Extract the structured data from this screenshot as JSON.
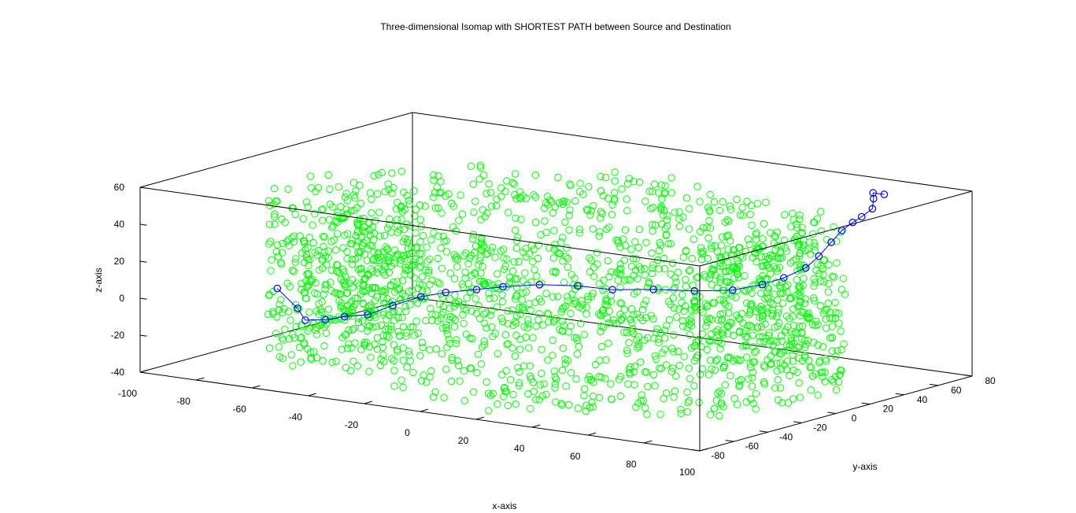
{
  "chart_data": {
    "type": "scatter",
    "projection": "3d",
    "title": "Three-dimensional Isomap with SHORTEST PATH between Source and Destination",
    "xlabel": "x-axis",
    "ylabel": "y-axis",
    "zlabel": "z-axis",
    "xlim": [
      -100,
      100
    ],
    "ylim": [
      -80,
      80
    ],
    "zlim": [
      -40,
      60
    ],
    "xticks": [
      "-100",
      "-80",
      "-60",
      "-40",
      "-20",
      "0",
      "20",
      "40",
      "60",
      "80",
      "100"
    ],
    "yticks": [
      "-80",
      "-60",
      "-40",
      "-20",
      "0",
      "20",
      "40",
      "60",
      "80"
    ],
    "zticks": [
      "-40",
      "-20",
      "0",
      "20",
      "40",
      "60"
    ],
    "grid": false,
    "box": true,
    "series": [
      {
        "marker": "circle",
        "color": "#00ff00",
        "point_count": 2000,
        "distribution": "hollow torus of points: radius about 40 to 95 in x-y around the origin, z between about -40 and 50"
      },
      {
        "marker": "circle",
        "line": true,
        "color": "#0000ff",
        "points": [
          {
            "x": -68,
            "y": -52,
            "z": 5
          },
          {
            "x": -62,
            "y": -50,
            "z": -5
          },
          {
            "x": -58,
            "y": -52,
            "z": -10
          },
          {
            "x": -52,
            "y": -50,
            "z": -9
          },
          {
            "x": -47,
            "y": -47,
            "z": -7
          },
          {
            "x": -40,
            "y": -45,
            "z": -5
          },
          {
            "x": -34,
            "y": -40,
            "z": 0
          },
          {
            "x": -27,
            "y": -35,
            "z": 5
          },
          {
            "x": -20,
            "y": -32,
            "z": 8
          },
          {
            "x": -12,
            "y": -27,
            "z": 10
          },
          {
            "x": -5,
            "y": -23,
            "z": 12
          },
          {
            "x": 5,
            "y": -18,
            "z": 14
          },
          {
            "x": 15,
            "y": -12,
            "z": 14
          },
          {
            "x": 25,
            "y": -8,
            "z": 13
          },
          {
            "x": 36,
            "y": -2,
            "z": 14
          },
          {
            "x": 47,
            "y": 4,
            "z": 14
          },
          {
            "x": 57,
            "y": 10,
            "z": 15
          },
          {
            "x": 64,
            "y": 16,
            "z": 18
          },
          {
            "x": 68,
            "y": 22,
            "z": 21
          },
          {
            "x": 71,
            "y": 30,
            "z": 25
          },
          {
            "x": 72,
            "y": 36,
            "z": 30
          },
          {
            "x": 74,
            "y": 40,
            "z": 37
          },
          {
            "x": 76,
            "y": 43,
            "z": 43
          },
          {
            "x": 78,
            "y": 46,
            "z": 47
          },
          {
            "x": 80,
            "y": 48,
            "z": 50
          },
          {
            "x": 82,
            "y": 51,
            "z": 54
          },
          {
            "x": 80,
            "y": 55,
            "z": 58
          },
          {
            "x": 78,
            "y": 58,
            "z": 60
          },
          {
            "x": 82,
            "y": 58,
            "z": 60
          }
        ]
      }
    ],
    "legend": "none"
  }
}
